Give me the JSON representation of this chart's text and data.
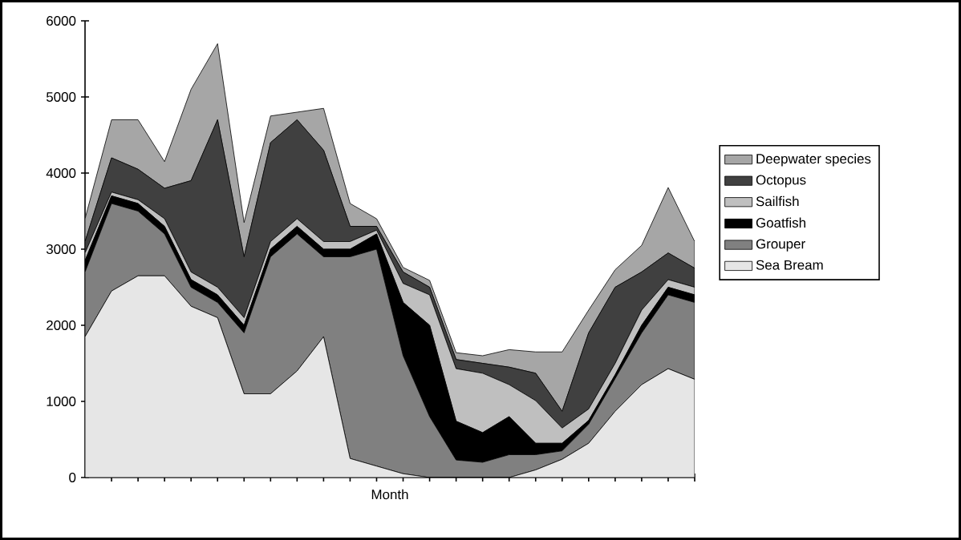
{
  "chart_data": {
    "type": "area",
    "stacked": true,
    "xlabel": "Month",
    "categories": [
      null,
      null,
      null,
      null,
      null,
      null,
      null,
      null,
      null,
      null,
      null,
      null,
      null,
      null,
      null,
      null,
      null,
      null,
      null,
      null,
      null,
      null,
      null,
      null
    ],
    "ylim": [
      0,
      6000
    ],
    "yticks": [
      0,
      1000,
      2000,
      3000,
      4000,
      5000,
      6000
    ],
    "tick_labels": "y",
    "legend": "right",
    "grid": false,
    "series": [
      {
        "name": "Sea Bream",
        "color": "#e6e6e6",
        "values": [
          1850,
          2450,
          2650,
          2650,
          2250,
          2100,
          1100,
          1100,
          1400,
          1850,
          250,
          150,
          50,
          0,
          0,
          0,
          0,
          100,
          240,
          450,
          870,
          1220,
          1430,
          1290
        ]
      },
      {
        "name": "Grouper",
        "color": "#808080",
        "values": [
          850,
          1150,
          850,
          550,
          250,
          200,
          800,
          1800,
          1800,
          1050,
          2650,
          2850,
          1550,
          800,
          230,
          200,
          300,
          200,
          110,
          250,
          430,
          680,
          970,
          1010
        ]
      },
      {
        "name": "Goatfish",
        "color": "#000000",
        "values": [
          150,
          100,
          100,
          100,
          100,
          100,
          100,
          100,
          100,
          100,
          100,
          200,
          700,
          1200,
          510,
          390,
          500,
          150,
          100,
          50,
          50,
          100,
          100,
          100
        ]
      },
      {
        "name": "Sailfish",
        "color": "#bfbfbf",
        "values": [
          100,
          50,
          50,
          100,
          100,
          100,
          100,
          100,
          100,
          100,
          100,
          50,
          250,
          400,
          690,
          780,
          420,
          560,
          200,
          150,
          150,
          200,
          100,
          100
        ]
      },
      {
        "name": "Octopus",
        "color": "#404040",
        "values": [
          150,
          450,
          400,
          400,
          1200,
          2200,
          800,
          1300,
          1300,
          1200,
          200,
          50,
          150,
          100,
          120,
          130,
          230,
          360,
          220,
          1000,
          1000,
          500,
          350,
          250
        ]
      },
      {
        "name": "Deepwater species",
        "color": "#a6a6a6",
        "values": [
          300,
          500,
          650,
          350,
          1200,
          1000,
          450,
          350,
          100,
          550,
          300,
          100,
          60,
          90,
          90,
          100,
          230,
          280,
          780,
          300,
          230,
          350,
          860,
          350
        ]
      }
    ]
  }
}
